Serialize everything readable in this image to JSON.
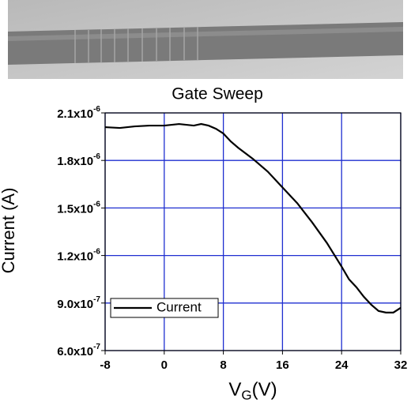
{
  "chart_data": {
    "type": "line",
    "title": "Gate Sweep",
    "x_label": [
      "V",
      "G",
      "(V)"
    ],
    "y_label": "Current (A)",
    "x": [
      -8,
      -6,
      -4,
      -2,
      0,
      2,
      4,
      5,
      6,
      7,
      8,
      9,
      10,
      12,
      14,
      16,
      18,
      20,
      22,
      24,
      25,
      26,
      27,
      28,
      29,
      30,
      31,
      32
    ],
    "series": [
      {
        "name": "Current",
        "color": "#000000",
        "values": [
          2.01e-06,
          2.005e-06,
          2.015e-06,
          2.02e-06,
          2.02e-06,
          2.03e-06,
          2.02e-06,
          2.03e-06,
          2.02e-06,
          2e-06,
          1.97e-06,
          1.92e-06,
          1.88e-06,
          1.81e-06,
          1.73e-06,
          1.63e-06,
          1.53e-06,
          1.41e-06,
          1.28e-06,
          1.13e-06,
          1.05e-06,
          1e-06,
          9.4e-07,
          8.9e-07,
          8.5e-07,
          8.4e-07,
          8.4e-07,
          8.7e-07
        ]
      }
    ],
    "xlim": [
      -8,
      32
    ],
    "xticks": [
      -8,
      0,
      8,
      16,
      24,
      32
    ],
    "ylim": [
      6e-07,
      2.1e-06
    ],
    "yticks": [
      {
        "value": 6e-07,
        "label": "6.0x10-7"
      },
      {
        "value": 9e-07,
        "label": "9.0x10-7"
      },
      {
        "value": 1.2e-06,
        "label": "1.2x10-6"
      },
      {
        "value": 1.5e-06,
        "label": "1.5x10-6"
      },
      {
        "value": 1.8e-06,
        "label": "1.8x10-6"
      },
      {
        "value": 2.1e-06,
        "label": "2.1x10-6"
      }
    ],
    "grid": true,
    "grid_color": "#1f2fd0",
    "legend": "lower left"
  }
}
